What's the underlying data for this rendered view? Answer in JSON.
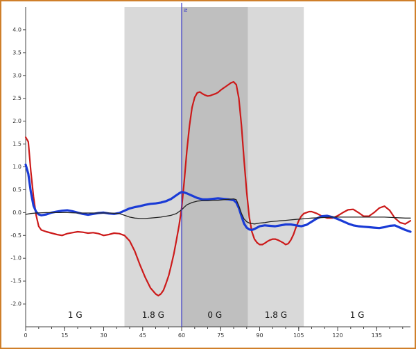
{
  "window": {
    "border_color": "#cf7f2a",
    "background": "#ffffff"
  },
  "chart_data": {
    "type": "line",
    "title": "",
    "xlabel": "",
    "ylabel": "",
    "xlim": [
      0,
      148
    ],
    "ylim": [
      -2.5,
      4.5
    ],
    "grid": false,
    "legend": "none",
    "x_ticks": [
      0,
      15,
      30,
      45,
      60,
      75,
      90,
      105,
      120,
      135
    ],
    "x_minor_step": 5,
    "y_ticks": [
      4.0,
      3.5,
      3.0,
      2.5,
      2.0,
      1.5,
      1.0,
      0.5,
      0.0,
      -0.5,
      -1.0,
      -1.5,
      -2.0
    ],
    "region_label_y": -2.3,
    "regions": [
      {
        "label": "1 G",
        "from": 0,
        "to": 38,
        "color": "#ffffff"
      },
      {
        "label": "1.8 G",
        "from": 38,
        "to": 60,
        "color": "#d9d9d9"
      },
      {
        "label": "0 G",
        "from": 60,
        "to": 85.5,
        "color": "#bfbfbf"
      },
      {
        "label": "1.8 G",
        "from": 85.5,
        "to": 107,
        "color": "#d9d9d9"
      },
      {
        "label": "1 G",
        "from": 107,
        "to": 148,
        "color": "#ffffff"
      }
    ],
    "marker_line": {
      "x": 60,
      "color": "#3b3bc8",
      "label": "N"
    },
    "axis_color": "#444444",
    "tick_label_color": "#333333",
    "phase_label_color": "#111111",
    "series": [
      {
        "name": "red",
        "color": "#cc1a1a",
        "width": 2.2,
        "points": [
          [
            0,
            1.65
          ],
          [
            1,
            1.55
          ],
          [
            2,
            0.9
          ],
          [
            3,
            0.35
          ],
          [
            4,
            -0.05
          ],
          [
            5,
            -0.3
          ],
          [
            6,
            -0.38
          ],
          [
            8,
            -0.42
          ],
          [
            10,
            -0.45
          ],
          [
            12,
            -0.48
          ],
          [
            14,
            -0.5
          ],
          [
            16,
            -0.46
          ],
          [
            18,
            -0.44
          ],
          [
            20,
            -0.42
          ],
          [
            22,
            -0.43
          ],
          [
            24,
            -0.45
          ],
          [
            26,
            -0.44
          ],
          [
            28,
            -0.46
          ],
          [
            30,
            -0.5
          ],
          [
            32,
            -0.48
          ],
          [
            34,
            -0.45
          ],
          [
            36,
            -0.46
          ],
          [
            38,
            -0.5
          ],
          [
            40,
            -0.62
          ],
          [
            42,
            -0.85
          ],
          [
            44,
            -1.15
          ],
          [
            46,
            -1.42
          ],
          [
            48,
            -1.65
          ],
          [
            50,
            -1.78
          ],
          [
            51,
            -1.82
          ],
          [
            52,
            -1.78
          ],
          [
            53,
            -1.7
          ],
          [
            54,
            -1.55
          ],
          [
            55,
            -1.38
          ],
          [
            56,
            -1.15
          ],
          [
            57,
            -0.9
          ],
          [
            58,
            -0.6
          ],
          [
            59,
            -0.28
          ],
          [
            60,
            0.1
          ],
          [
            61,
            0.7
          ],
          [
            62,
            1.35
          ],
          [
            63,
            1.9
          ],
          [
            64,
            2.3
          ],
          [
            65,
            2.52
          ],
          [
            66,
            2.62
          ],
          [
            67,
            2.64
          ],
          [
            68,
            2.6
          ],
          [
            69,
            2.57
          ],
          [
            70,
            2.55
          ],
          [
            71,
            2.56
          ],
          [
            72,
            2.58
          ],
          [
            73,
            2.6
          ],
          [
            74,
            2.63
          ],
          [
            75,
            2.68
          ],
          [
            76,
            2.72
          ],
          [
            77,
            2.76
          ],
          [
            78,
            2.8
          ],
          [
            79,
            2.84
          ],
          [
            80,
            2.86
          ],
          [
            81,
            2.8
          ],
          [
            82,
            2.5
          ],
          [
            83,
            1.9
          ],
          [
            84,
            1.15
          ],
          [
            85,
            0.45
          ],
          [
            86,
            -0.1
          ],
          [
            87,
            -0.42
          ],
          [
            88,
            -0.58
          ],
          [
            89,
            -0.66
          ],
          [
            90,
            -0.7
          ],
          [
            91,
            -0.7
          ],
          [
            92,
            -0.67
          ],
          [
            93,
            -0.63
          ],
          [
            94,
            -0.6
          ],
          [
            95,
            -0.58
          ],
          [
            96,
            -0.58
          ],
          [
            97,
            -0.6
          ],
          [
            98,
            -0.63
          ],
          [
            99,
            -0.66
          ],
          [
            100,
            -0.7
          ],
          [
            101,
            -0.68
          ],
          [
            102,
            -0.6
          ],
          [
            103,
            -0.48
          ],
          [
            104,
            -0.32
          ],
          [
            105,
            -0.18
          ],
          [
            106,
            -0.08
          ],
          [
            107,
            -0.02
          ],
          [
            108,
            0.0
          ],
          [
            109,
            0.02
          ],
          [
            110,
            0.02
          ],
          [
            112,
            -0.02
          ],
          [
            114,
            -0.08
          ],
          [
            116,
            -0.12
          ],
          [
            118,
            -0.12
          ],
          [
            120,
            -0.07
          ],
          [
            122,
            0.0
          ],
          [
            124,
            0.06
          ],
          [
            126,
            0.07
          ],
          [
            128,
            0.0
          ],
          [
            130,
            -0.08
          ],
          [
            132,
            -0.08
          ],
          [
            134,
            0.0
          ],
          [
            136,
            0.1
          ],
          [
            138,
            0.14
          ],
          [
            140,
            0.05
          ],
          [
            142,
            -0.12
          ],
          [
            144,
            -0.22
          ],
          [
            146,
            -0.25
          ],
          [
            148,
            -0.18
          ]
        ]
      },
      {
        "name": "blue",
        "color": "#1a3bd6",
        "width": 3.2,
        "points": [
          [
            0,
            1.05
          ],
          [
            1,
            0.85
          ],
          [
            2,
            0.45
          ],
          [
            3,
            0.15
          ],
          [
            4,
            0.02
          ],
          [
            5,
            -0.04
          ],
          [
            6,
            -0.06
          ],
          [
            8,
            -0.04
          ],
          [
            10,
            0.0
          ],
          [
            12,
            0.02
          ],
          [
            14,
            0.04
          ],
          [
            16,
            0.05
          ],
          [
            18,
            0.03
          ],
          [
            20,
            0.0
          ],
          [
            22,
            -0.03
          ],
          [
            24,
            -0.05
          ],
          [
            26,
            -0.03
          ],
          [
            28,
            -0.01
          ],
          [
            30,
            0.0
          ],
          [
            32,
            -0.02
          ],
          [
            34,
            -0.03
          ],
          [
            36,
            -0.01
          ],
          [
            38,
            0.04
          ],
          [
            40,
            0.09
          ],
          [
            42,
            0.12
          ],
          [
            44,
            0.14
          ],
          [
            46,
            0.17
          ],
          [
            48,
            0.19
          ],
          [
            50,
            0.2
          ],
          [
            52,
            0.22
          ],
          [
            54,
            0.25
          ],
          [
            56,
            0.3
          ],
          [
            58,
            0.38
          ],
          [
            59,
            0.42
          ],
          [
            60,
            0.45
          ],
          [
            61,
            0.44
          ],
          [
            62,
            0.42
          ],
          [
            64,
            0.37
          ],
          [
            66,
            0.32
          ],
          [
            68,
            0.29
          ],
          [
            70,
            0.29
          ],
          [
            72,
            0.3
          ],
          [
            74,
            0.31
          ],
          [
            76,
            0.3
          ],
          [
            78,
            0.29
          ],
          [
            80,
            0.27
          ],
          [
            81,
            0.22
          ],
          [
            82,
            0.1
          ],
          [
            83,
            -0.08
          ],
          [
            84,
            -0.24
          ],
          [
            85,
            -0.33
          ],
          [
            86,
            -0.37
          ],
          [
            87,
            -0.38
          ],
          [
            88,
            -0.36
          ],
          [
            89,
            -0.33
          ],
          [
            90,
            -0.3
          ],
          [
            92,
            -0.28
          ],
          [
            94,
            -0.29
          ],
          [
            96,
            -0.3
          ],
          [
            98,
            -0.28
          ],
          [
            100,
            -0.26
          ],
          [
            102,
            -0.26
          ],
          [
            104,
            -0.28
          ],
          [
            106,
            -0.3
          ],
          [
            108,
            -0.27
          ],
          [
            110,
            -0.2
          ],
          [
            112,
            -0.13
          ],
          [
            114,
            -0.08
          ],
          [
            116,
            -0.07
          ],
          [
            118,
            -0.1
          ],
          [
            120,
            -0.14
          ],
          [
            122,
            -0.19
          ],
          [
            124,
            -0.24
          ],
          [
            126,
            -0.28
          ],
          [
            128,
            -0.3
          ],
          [
            130,
            -0.31
          ],
          [
            132,
            -0.32
          ],
          [
            134,
            -0.33
          ],
          [
            136,
            -0.34
          ],
          [
            138,
            -0.32
          ],
          [
            140,
            -0.29
          ],
          [
            142,
            -0.28
          ],
          [
            144,
            -0.33
          ],
          [
            146,
            -0.38
          ],
          [
            148,
            -0.42
          ]
        ]
      },
      {
        "name": "black",
        "color": "#222222",
        "width": 1.3,
        "points": [
          [
            0,
            -0.04
          ],
          [
            2,
            -0.02
          ],
          [
            4,
            -0.01
          ],
          [
            8,
            0.0
          ],
          [
            12,
            0.0
          ],
          [
            16,
            0.0
          ],
          [
            20,
            -0.01
          ],
          [
            24,
            -0.01
          ],
          [
            28,
            -0.01
          ],
          [
            32,
            -0.01
          ],
          [
            36,
            -0.02
          ],
          [
            38,
            -0.06
          ],
          [
            40,
            -0.1
          ],
          [
            42,
            -0.12
          ],
          [
            44,
            -0.13
          ],
          [
            46,
            -0.13
          ],
          [
            48,
            -0.12
          ],
          [
            50,
            -0.11
          ],
          [
            52,
            -0.1
          ],
          [
            54,
            -0.08
          ],
          [
            56,
            -0.06
          ],
          [
            58,
            -0.02
          ],
          [
            60,
            0.06
          ],
          [
            61,
            0.12
          ],
          [
            62,
            0.17
          ],
          [
            64,
            0.22
          ],
          [
            66,
            0.25
          ],
          [
            68,
            0.26
          ],
          [
            70,
            0.26
          ],
          [
            72,
            0.27
          ],
          [
            74,
            0.27
          ],
          [
            76,
            0.28
          ],
          [
            78,
            0.29
          ],
          [
            80,
            0.3
          ],
          [
            81,
            0.28
          ],
          [
            82,
            0.15
          ],
          [
            83,
            -0.02
          ],
          [
            84,
            -0.14
          ],
          [
            85,
            -0.2
          ],
          [
            86,
            -0.23
          ],
          [
            88,
            -0.25
          ],
          [
            90,
            -0.23
          ],
          [
            92,
            -0.22
          ],
          [
            94,
            -0.2
          ],
          [
            96,
            -0.19
          ],
          [
            98,
            -0.18
          ],
          [
            100,
            -0.17
          ],
          [
            102,
            -0.16
          ],
          [
            104,
            -0.15
          ],
          [
            106,
            -0.14
          ],
          [
            108,
            -0.13
          ],
          [
            110,
            -0.12
          ],
          [
            114,
            -0.11
          ],
          [
            118,
            -0.1
          ],
          [
            122,
            -0.1
          ],
          [
            126,
            -0.1
          ],
          [
            130,
            -0.1
          ],
          [
            134,
            -0.1
          ],
          [
            138,
            -0.1
          ],
          [
            142,
            -0.11
          ],
          [
            146,
            -0.12
          ],
          [
            148,
            -0.12
          ]
        ]
      }
    ]
  }
}
